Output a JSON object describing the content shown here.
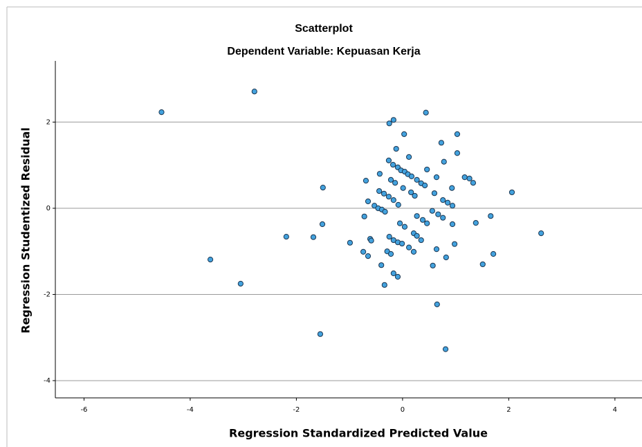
{
  "chart_data": {
    "type": "scatter",
    "title": "Scatterplot",
    "subtitle": "Dependent Variable: Kepuasan Kerja",
    "x_label": "Regression Standardized Predicted Value",
    "y_label": "Regression Studentized Residual",
    "color": "#43a2de",
    "edge_color": "#1a3550",
    "grid": "y",
    "xlim": [
      -6.54,
      4.51
    ],
    "ylim": [
      -4.4,
      3.42
    ],
    "xticks": [
      -6,
      -4,
      -2,
      0,
      2,
      4
    ],
    "yticks": [
      -4,
      -2,
      0,
      2
    ],
    "x": [
      -4.54,
      -2.79,
      -1.5,
      -1.51,
      -2.19,
      -1.68,
      -3.62,
      -3.05,
      -1.55,
      0.44,
      -0.17,
      -0.25,
      0.03,
      -0.12,
      0.12,
      0.73,
      1.03,
      1.03,
      0.78,
      0.46,
      -0.69,
      -0.43,
      -0.26,
      -0.18,
      -0.09,
      -0.03,
      0.04,
      0.1,
      0.17,
      0.27,
      0.35,
      0.42,
      0.64,
      -0.22,
      -0.14,
      0.01,
      0.16,
      0.23,
      -0.44,
      -0.35,
      -0.26,
      -0.17,
      -0.08,
      -0.65,
      -0.53,
      -0.46,
      -0.39,
      -0.33,
      -0.72,
      0.6,
      0.76,
      0.85,
      0.94,
      0.93,
      0.56,
      0.67,
      0.76,
      0.27,
      0.38,
      0.46,
      -0.05,
      0.04,
      0.21,
      0.27,
      0.35,
      0.94,
      1.38,
      1.17,
      1.26,
      1.33,
      1.66,
      2.06,
      2.61,
      -0.25,
      -0.17,
      -0.09,
      -0.01,
      -0.61,
      -0.59,
      -0.99,
      -0.74,
      -0.65,
      -0.29,
      -0.22,
      0.12,
      0.21,
      0.64,
      0.98,
      0.82,
      0.57,
      -0.4,
      -0.17,
      -0.09,
      -0.34,
      1.51,
      1.71,
      0.65,
      0.81
    ],
    "values": [
      2.23,
      2.71,
      0.48,
      -0.37,
      -0.66,
      -0.67,
      -1.19,
      -1.75,
      -2.92,
      2.22,
      2.05,
      1.97,
      1.72,
      1.38,
      1.19,
      1.52,
      1.72,
      1.28,
      1.08,
      0.9,
      0.64,
      0.8,
      1.11,
      1.01,
      0.95,
      0.88,
      0.85,
      0.79,
      0.74,
      0.66,
      0.58,
      0.53,
      0.72,
      0.66,
      0.59,
      0.47,
      0.37,
      0.29,
      0.4,
      0.34,
      0.27,
      0.19,
      0.08,
      0.16,
      0.06,
      0.0,
      -0.03,
      -0.08,
      -0.19,
      0.35,
      0.19,
      0.13,
      0.06,
      0.47,
      -0.06,
      -0.14,
      -0.22,
      -0.18,
      -0.27,
      -0.35,
      -0.35,
      -0.43,
      -0.58,
      -0.64,
      -0.74,
      -0.37,
      -0.34,
      0.72,
      0.69,
      0.59,
      -0.18,
      0.37,
      -0.58,
      -0.66,
      -0.74,
      -0.79,
      -0.82,
      -0.71,
      -0.75,
      -0.8,
      -1.01,
      -1.11,
      -1.0,
      -1.06,
      -0.91,
      -1.01,
      -0.95,
      -0.83,
      -1.14,
      -1.33,
      -1.32,
      -1.51,
      -1.59,
      -1.78,
      -1.3,
      -1.06,
      -2.23,
      -3.27
    ]
  }
}
